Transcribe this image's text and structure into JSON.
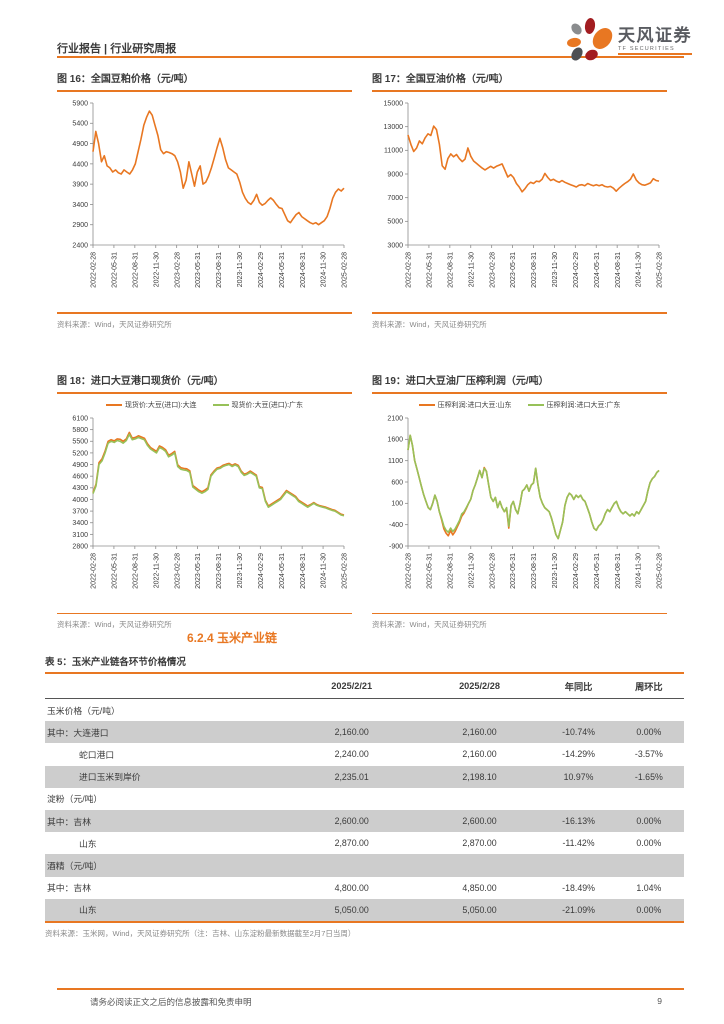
{
  "header": {
    "title": "行业报告 | 行业研究周报",
    "logo_name": "天风证券",
    "logo_sub": "TF SECURITIES"
  },
  "section": {
    "heading": "6.2.4 玉米产业链"
  },
  "colors": {
    "accent_orange": "#E87722",
    "chart_orange": "#E87722",
    "chart_green": "#97C159",
    "row_shade": "#CDCDCD"
  },
  "chart_data": [
    {
      "id": "fig16",
      "type": "line",
      "title": "图 16：全国豆粕价格（元/吨）",
      "source": "资料来源：Wind，天风证券研究所",
      "ylim": [
        2400,
        5900
      ],
      "ytick_step": 500,
      "grid": false,
      "legend_position": "none",
      "x_labels": [
        "2022-02-28",
        "2022-05-31",
        "2022-08-31",
        "2022-11-30",
        "2023-02-28",
        "2023-05-31",
        "2023-08-31",
        "2023-11-30",
        "2024-02-29",
        "2024-05-31",
        "2024-08-31",
        "2024-11-30",
        "2025-02-28"
      ],
      "series": [
        {
          "name": "全国豆粕价格",
          "color": "#E87722",
          "values": [
            4700,
            5200,
            4900,
            4450,
            4600,
            4350,
            4300,
            4200,
            4250,
            4180,
            4150,
            4250,
            4200,
            4150,
            4250,
            4400,
            4700,
            5000,
            5350,
            5550,
            5700,
            5600,
            5350,
            5100,
            4750,
            4650,
            4700,
            4680,
            4650,
            4600,
            4450,
            4200,
            3800,
            4000,
            4450,
            4150,
            3850,
            4200,
            4350,
            3900,
            3950,
            4100,
            4300,
            4550,
            4800,
            5030,
            4800,
            4500,
            4300,
            4250,
            4200,
            4150,
            3950,
            3700,
            3550,
            3450,
            3400,
            3500,
            3650,
            3450,
            3380,
            3420,
            3500,
            3560,
            3500,
            3400,
            3320,
            3300,
            3150,
            3000,
            2950,
            3050,
            3150,
            3200,
            3100,
            3050,
            3000,
            2950,
            2920,
            2950,
            2900,
            2950,
            3000,
            3100,
            3300,
            3550,
            3700,
            3780,
            3730,
            3800
          ]
        }
      ]
    },
    {
      "id": "fig17",
      "type": "line",
      "title": "图 17：全国豆油价格（元/吨）",
      "source": "资料来源：Wind，天风证券研究所",
      "ylim": [
        3000,
        15000
      ],
      "ytick_step": 2000,
      "grid": false,
      "legend_position": "none",
      "x_labels": [
        "2022-02-28",
        "2022-05-31",
        "2022-08-31",
        "2022-11-30",
        "2023-02-28",
        "2023-05-31",
        "2023-08-31",
        "2023-11-30",
        "2024-02-29",
        "2024-05-31",
        "2024-08-31",
        "2024-11-30",
        "2025-02-28"
      ],
      "series": [
        {
          "name": "全国豆油价格",
          "color": "#E87722",
          "values": [
            12300,
            11500,
            10900,
            11200,
            11800,
            11550,
            12050,
            12400,
            12250,
            13050,
            12750,
            11500,
            9700,
            9400,
            10300,
            10700,
            10450,
            10650,
            10300,
            10050,
            10250,
            11200,
            10500,
            10100,
            9900,
            9700,
            9500,
            9350,
            9500,
            9650,
            9500,
            9650,
            9750,
            9850,
            9300,
            8750,
            8950,
            8700,
            8200,
            7900,
            7500,
            7750,
            8100,
            8300,
            8200,
            8400,
            8350,
            8550,
            9050,
            8700,
            8450,
            8550,
            8400,
            8300,
            8450,
            8300,
            8200,
            8100,
            8000,
            7900,
            8050,
            8100,
            8000,
            8200,
            8100,
            8000,
            8100,
            8000,
            8100,
            7950,
            7900,
            7950,
            7800,
            7550,
            7800,
            8000,
            8200,
            8350,
            8550,
            9000,
            8500,
            8250,
            8100,
            8050,
            8150,
            8250,
            8600,
            8450,
            8400
          ]
        }
      ]
    },
    {
      "id": "fig18",
      "type": "line",
      "title": "图 18：进口大豆港口现货价（元/吨）",
      "source": "资料来源：Wind，天风证券研究所",
      "ylim": [
        2800,
        6100
      ],
      "ytick_step": 300,
      "grid": false,
      "legend_position": "top",
      "x_labels": [
        "2022-02-28",
        "2022-05-31",
        "2022-08-31",
        "2022-11-30",
        "2023-02-28",
        "2023-05-31",
        "2023-08-31",
        "2023-11-30",
        "2024-02-29",
        "2024-05-31",
        "2024-08-31",
        "2024-11-30",
        "2025-02-28"
      ],
      "series": [
        {
          "name": "现货价:大豆(进口):大连",
          "color": "#E87722",
          "values": [
            4180,
            4390,
            4950,
            5050,
            5250,
            5500,
            5540,
            5510,
            5560,
            5550,
            5500,
            5560,
            5730,
            5580,
            5600,
            5640,
            5610,
            5580,
            5440,
            5340,
            5290,
            5240,
            5380,
            5340,
            5280,
            5140,
            5180,
            5240,
            4890,
            4820,
            4800,
            4790,
            4740,
            4360,
            4300,
            4240,
            4200,
            4240,
            4300,
            4630,
            4730,
            4810,
            4830,
            4880,
            4910,
            4930,
            4880,
            4920,
            4880,
            4730,
            4650,
            4680,
            4730,
            4680,
            4630,
            4330,
            4310,
            3980,
            3830,
            3880,
            3930,
            3980,
            4030,
            4130,
            4230,
            4180,
            4130,
            4080,
            3980,
            3930,
            3880,
            3830,
            3870,
            3920,
            3870,
            3840,
            3820,
            3800,
            3770,
            3740,
            3720,
            3670,
            3620,
            3600
          ]
        },
        {
          "name": "现货价:大豆(进口):广东",
          "color": "#97C159",
          "values": [
            4150,
            4350,
            4900,
            5000,
            5200,
            5450,
            5500,
            5470,
            5520,
            5500,
            5450,
            5520,
            5680,
            5540,
            5560,
            5600,
            5570,
            5540,
            5400,
            5300,
            5250,
            5200,
            5340,
            5300,
            5240,
            5100,
            5140,
            5200,
            4850,
            4780,
            4760,
            4750,
            4700,
            4320,
            4260,
            4200,
            4160,
            4200,
            4260,
            4600,
            4700,
            4780,
            4800,
            4850,
            4880,
            4900,
            4850,
            4890,
            4850,
            4700,
            4620,
            4650,
            4700,
            4650,
            4600,
            4300,
            4280,
            3950,
            3800,
            3850,
            3900,
            3950,
            4000,
            4100,
            4200,
            4150,
            4100,
            4050,
            3950,
            3900,
            3850,
            3800,
            3850,
            3900,
            3850,
            3820,
            3800,
            3780,
            3750,
            3720,
            3700,
            3650,
            3600,
            3580
          ]
        }
      ]
    },
    {
      "id": "fig19",
      "type": "line",
      "title": "图 19：进口大豆油厂压榨利润（元/吨）",
      "source": "资料来源：Wind，天风证券研究所",
      "ylim": [
        -900,
        2100
      ],
      "ytick_step": 500,
      "grid": false,
      "legend_position": "top",
      "x_labels": [
        "2022-02-28",
        "2022-05-31",
        "2022-08-31",
        "2022-11-30",
        "2023-02-28",
        "2023-05-31",
        "2023-08-31",
        "2023-11-30",
        "2024-02-29",
        "2024-05-31",
        "2024-08-31",
        "2024-11-30",
        "2025-02-28"
      ],
      "series": [
        {
          "name": "压榨利润:进口大豆:山东",
          "color": "#E87722",
          "values": [
            1350,
            1694,
            1450,
            1100,
            900,
            700,
            500,
            300,
            150,
            0,
            -48,
            100,
            290,
            150,
            -100,
            -280,
            -500,
            -600,
            -660,
            -540,
            -640,
            -560,
            -450,
            -340,
            -200,
            -130,
            -20,
            95,
            200,
            400,
            530,
            700,
            870,
            700,
            940,
            850,
            530,
            240,
            145,
            240,
            0,
            145,
            0,
            -97,
            -30,
            -480,
            48,
            145,
            -48,
            -145,
            95,
            385,
            435,
            530,
            385,
            530,
            580,
            920,
            530,
            240,
            95,
            0,
            -48,
            -97,
            -242,
            -435,
            -630,
            -727,
            -532,
            -339,
            48,
            240,
            337,
            290,
            193,
            290,
            240,
            290,
            193,
            145,
            0,
            -145,
            -339,
            -484,
            -532,
            -435,
            -387,
            -290,
            -145,
            -48,
            -97,
            0,
            95,
            145,
            0,
            -97,
            -145,
            -97,
            -145,
            -194,
            -145,
            -194,
            -97,
            -145,
            -48,
            48,
            145,
            385,
            580,
            677,
            726,
            823,
            871
          ]
        },
        {
          "name": "压榨利润:进口大豆:广东",
          "color": "#97C159",
          "values": [
            1350,
            1694,
            1450,
            1100,
            900,
            700,
            500,
            300,
            150,
            0,
            -48,
            100,
            290,
            150,
            -100,
            -250,
            -435,
            -530,
            -580,
            -480,
            -560,
            -500,
            -400,
            -300,
            -145,
            -100,
            0,
            95,
            200,
            400,
            530,
            700,
            870,
            700,
            919,
            850,
            530,
            240,
            145,
            240,
            0,
            145,
            0,
            -97,
            0,
            -435,
            48,
            145,
            -48,
            -145,
            95,
            385,
            435,
            530,
            385,
            530,
            580,
            920,
            530,
            240,
            95,
            0,
            -48,
            -97,
            -242,
            -435,
            -630,
            -727,
            -532,
            -339,
            48,
            240,
            337,
            290,
            193,
            290,
            240,
            290,
            193,
            145,
            0,
            -145,
            -339,
            -484,
            -532,
            -435,
            -387,
            -290,
            -145,
            -48,
            -97,
            0,
            95,
            145,
            0,
            -97,
            -145,
            -97,
            -145,
            -194,
            -145,
            -194,
            -97,
            -145,
            -48,
            48,
            145,
            385,
            580,
            677,
            726,
            823,
            871
          ]
        }
      ]
    }
  ],
  "table": {
    "title": "表 5：玉米产业链各环节价格情况",
    "columns": [
      "",
      "2025/2/21",
      "2025/2/28",
      "年同比",
      "周环比"
    ],
    "rows": [
      {
        "label": "玉米价格（元/吨）",
        "indent": 0,
        "shaded": false,
        "cells": [
          "",
          "",
          "",
          ""
        ]
      },
      {
        "label": "其中：大连港口",
        "indent": 0,
        "shaded": true,
        "cells": [
          "2,160.00",
          "2,160.00",
          "-10.74%",
          "0.00%"
        ]
      },
      {
        "label": "蛇口港口",
        "indent": 2,
        "shaded": false,
        "cells": [
          "2,240.00",
          "2,160.00",
          "-14.29%",
          "-3.57%"
        ]
      },
      {
        "label": "进口玉米到岸价",
        "indent": 2,
        "shaded": true,
        "cells": [
          "2,235.01",
          "2,198.10",
          "10.97%",
          "-1.65%"
        ]
      },
      {
        "label": "淀粉（元/吨）",
        "indent": 0,
        "shaded": false,
        "cells": [
          "",
          "",
          "",
          ""
        ]
      },
      {
        "label": "其中：吉林",
        "indent": 0,
        "shaded": true,
        "cells": [
          "2,600.00",
          "2,600.00",
          "-16.13%",
          "0.00%"
        ]
      },
      {
        "label": "山东",
        "indent": 2,
        "shaded": false,
        "cells": [
          "2,870.00",
          "2,870.00",
          "-11.42%",
          "0.00%"
        ]
      },
      {
        "label": "酒精（元/吨）",
        "indent": 0,
        "shaded": true,
        "cells": [
          "",
          "",
          "",
          ""
        ]
      },
      {
        "label": "其中：吉林",
        "indent": 0,
        "shaded": false,
        "cells": [
          "4,800.00",
          "4,850.00",
          "-18.49%",
          "1.04%"
        ]
      },
      {
        "label": "山东",
        "indent": 2,
        "shaded": true,
        "cells": [
          "5,050.00",
          "5,050.00",
          "-21.09%",
          "0.00%"
        ]
      }
    ],
    "source": "资料来源：玉米网，Wind，天风证券研究所（注：吉林、山东淀粉最新数据截至2月7日当周）"
  },
  "footer": {
    "disclaimer": "请务必阅读正文之后的信息披露和免责申明",
    "page_number": "9"
  }
}
